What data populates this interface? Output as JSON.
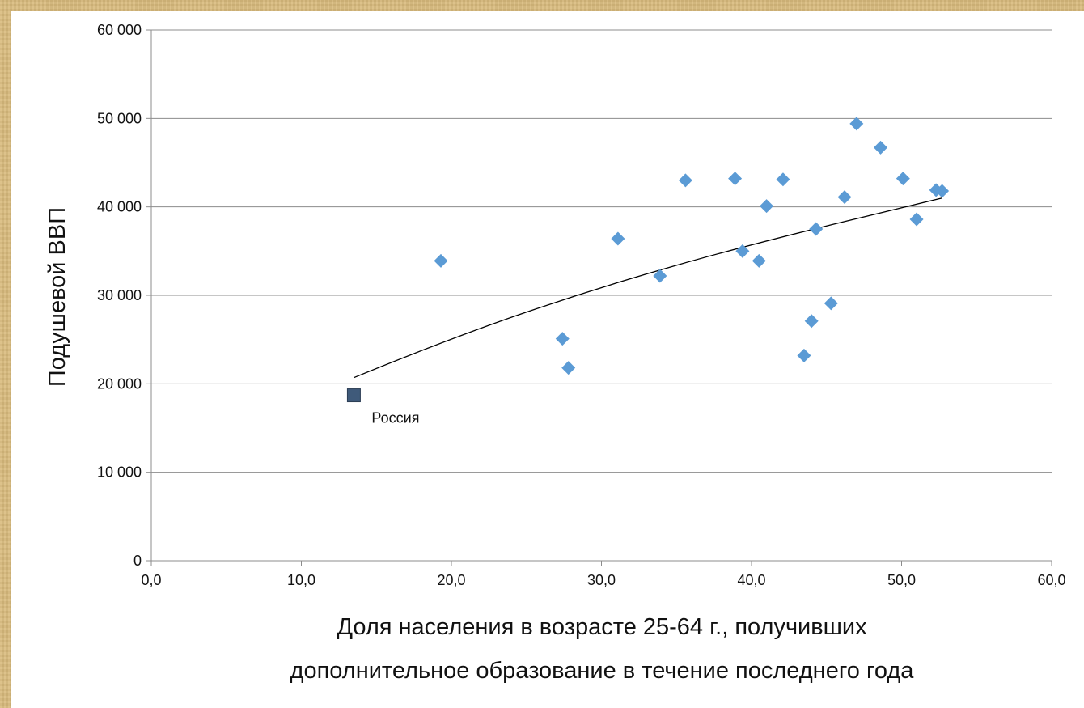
{
  "chart_data": {
    "type": "scatter",
    "title": "",
    "xlabel_lines": [
      "Доля населения в возрасте 25-64 г., получивших",
      "дополнительное образование в течение последнего года"
    ],
    "ylabel": "Подушевой ВВП",
    "xlim": [
      0,
      60
    ],
    "ylim": [
      0,
      60000
    ],
    "x_ticks": [
      "0,0",
      "10,0",
      "20,0",
      "30,0",
      "40,0",
      "50,0",
      "60,0"
    ],
    "y_ticks": [
      "0",
      "10 000",
      "20 000",
      "30 000",
      "40 000",
      "50 000",
      "60 000"
    ],
    "grid": "horizontal",
    "legend": "none",
    "marker_color": "#5b9bd5",
    "highlight_color": "#3f5a7a",
    "points": [
      {
        "x": 19.3,
        "y": 33900
      },
      {
        "x": 27.4,
        "y": 25100
      },
      {
        "x": 27.8,
        "y": 21800
      },
      {
        "x": 31.1,
        "y": 36400
      },
      {
        "x": 33.9,
        "y": 32200
      },
      {
        "x": 35.6,
        "y": 43000
      },
      {
        "x": 38.9,
        "y": 43200
      },
      {
        "x": 39.4,
        "y": 35000
      },
      {
        "x": 40.5,
        "y": 33900
      },
      {
        "x": 41.0,
        "y": 40100
      },
      {
        "x": 42.1,
        "y": 43100
      },
      {
        "x": 43.5,
        "y": 23200
      },
      {
        "x": 44.0,
        "y": 27100
      },
      {
        "x": 44.3,
        "y": 37500
      },
      {
        "x": 45.3,
        "y": 29100
      },
      {
        "x": 46.2,
        "y": 41100
      },
      {
        "x": 47.0,
        "y": 49400
      },
      {
        "x": 48.6,
        "y": 46700
      },
      {
        "x": 50.1,
        "y": 43200
      },
      {
        "x": 51.0,
        "y": 38600
      },
      {
        "x": 52.3,
        "y": 41900
      },
      {
        "x": 52.7,
        "y": 41800
      }
    ],
    "highlight": {
      "x": 13.5,
      "y": 18700,
      "label": "Россия"
    },
    "trendline": {
      "type": "power",
      "x_range": [
        13.5,
        52.7
      ],
      "points": [
        [
          13.5,
          20700
        ],
        [
          20.0,
          25200
        ],
        [
          30.0,
          31000
        ],
        [
          40.0,
          35800
        ],
        [
          52.7,
          41000
        ]
      ]
    }
  }
}
